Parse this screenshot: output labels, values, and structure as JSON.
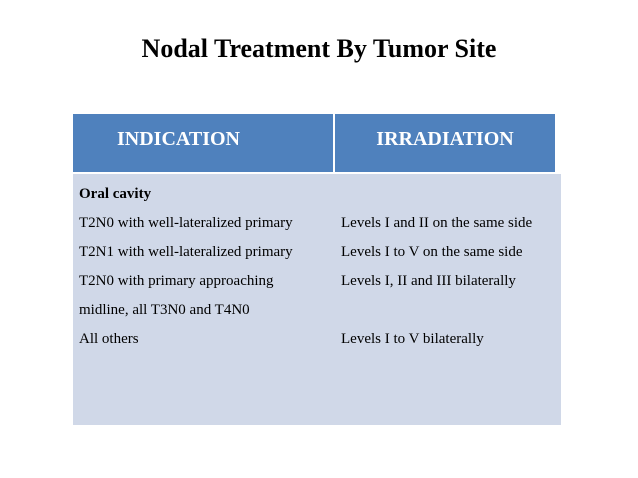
{
  "title": "Nodal Treatment By Tumor Site",
  "colors": {
    "header": "#4f81bd",
    "body": "#d0d8e8"
  },
  "table": {
    "headers": [
      "INDICATION",
      "IRRADIATION"
    ],
    "section": "Oral cavity",
    "indication": [
      "T2N0 with well-lateralized primary",
      "T2N1 with well-lateralized primary",
      "T2N0 with primary approaching",
      "midline, all T3N0 and T4N0",
      "All others"
    ],
    "irradiation": [
      "Levels I and II on the same side",
      "Levels I to V on the same side",
      "Levels I, II and III bilaterally",
      "",
      "Levels I to V bilaterally"
    ]
  }
}
